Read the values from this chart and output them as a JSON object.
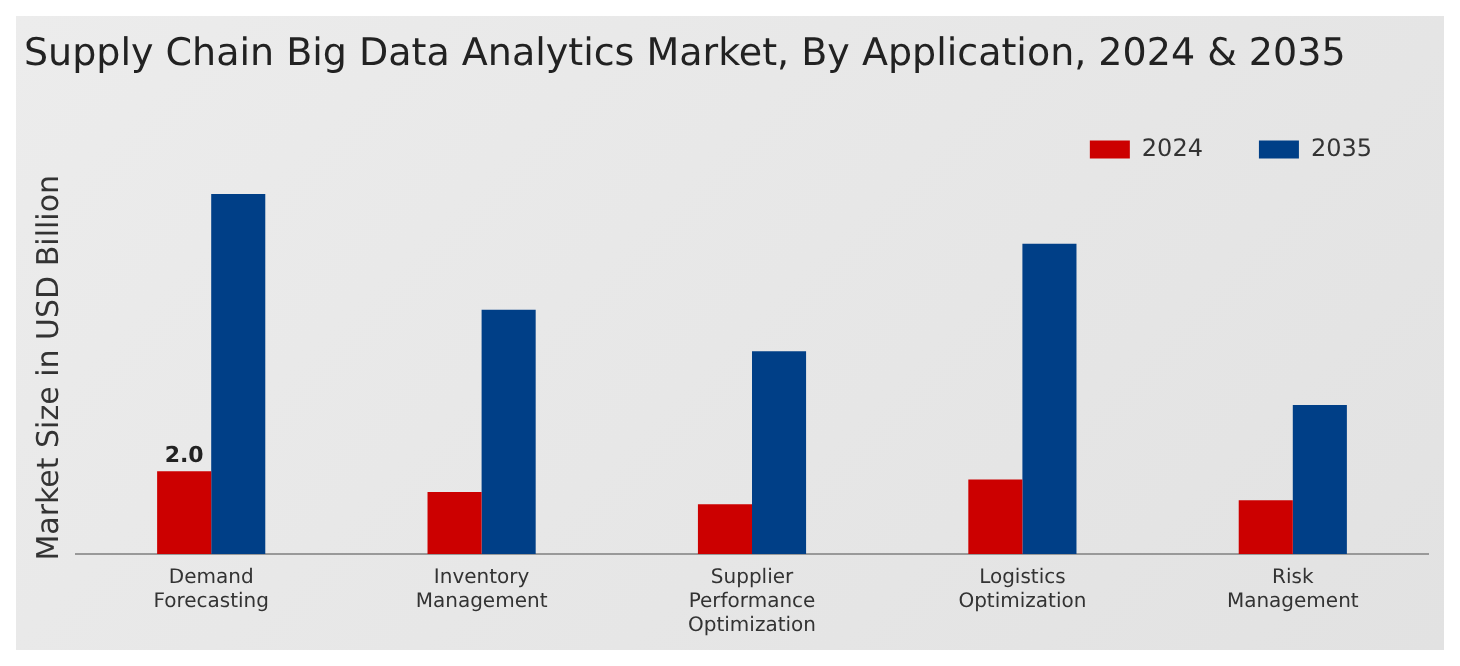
{
  "chart_data": {
    "type": "bar",
    "title": "Supply Chain Big Data Analytics Market, By Application, 2024 & 2035",
    "ylabel": "Market Size in USD Billion",
    "categories": [
      "Demand Forecasting",
      "Inventory Management",
      "Supplier Performance Optimization",
      "Logistics Optimization",
      "Risk Management"
    ],
    "series": [
      {
        "name": "2024",
        "color": "#cc0000",
        "values": [
          2.0,
          1.5,
          1.2,
          1.8,
          1.3
        ],
        "value_labels": [
          "2.0",
          null,
          null,
          null,
          null
        ]
      },
      {
        "name": "2035",
        "color": "#003f87",
        "values": [
          8.7,
          5.9,
          4.9,
          7.5,
          3.6
        ]
      }
    ],
    "legend": "top right",
    "grid": false
  }
}
